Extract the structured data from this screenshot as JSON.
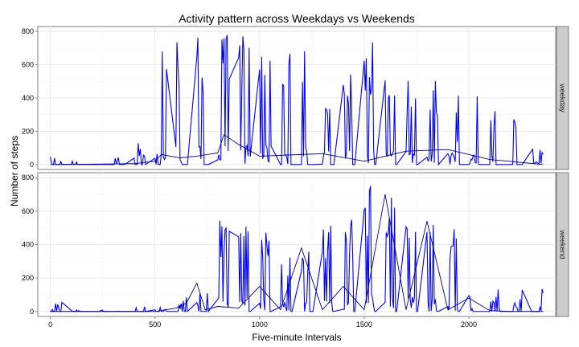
{
  "chart_data": {
    "type": "line",
    "title": "Activity pattern across Weekdays vs Weekends",
    "xlabel": "Five-minute Intervals",
    "ylabel": "Number of steps",
    "xlim": [
      -60,
      2415
    ],
    "ylim": [
      -30,
      830
    ],
    "x_ticks": [
      0,
      500,
      1000,
      1500,
      2000
    ],
    "y_ticks": [
      0,
      200,
      400,
      600,
      800
    ],
    "grid": true,
    "series_color": "#0000ff",
    "mean_color": "#00008b",
    "panels": [
      {
        "name": "weekday",
        "bursts": [
          {
            "x": [
              530,
              555
            ],
            "peak": 790
          },
          {
            "x": [
              600,
              625
            ],
            "peak": 800
          },
          {
            "x": [
              700,
              730
            ],
            "peak": 790
          },
          {
            "x": [
              800,
              860
            ],
            "peak": 790
          },
          {
            "x": [
              900,
              955
            ],
            "peak": 800
          },
          {
            "x": [
              1000,
              1055
            ],
            "peak": 780
          },
          {
            "x": [
              1110,
              1145
            ],
            "peak": 760
          },
          {
            "x": [
              1205,
              1225
            ],
            "peak": 760
          },
          {
            "x": [
              1300,
              1335
            ],
            "peak": 550
          },
          {
            "x": [
              1400,
              1440
            ],
            "peak": 560
          },
          {
            "x": [
              1500,
              1545
            ],
            "peak": 760
          },
          {
            "x": [
              1600,
              1645
            ],
            "peak": 540
          },
          {
            "x": [
              1700,
              1745
            ],
            "peak": 530
          },
          {
            "x": [
              1800,
              1850
            ],
            "peak": 520
          },
          {
            "x": [
              1900,
              1950
            ],
            "peak": 480
          },
          {
            "x": [
              2005,
              2045
            ],
            "peak": 420
          },
          {
            "x": [
              2105,
              2125
            ],
            "peak": 400
          },
          {
            "x": [
              2215,
              2225
            ],
            "peak": 390
          },
          {
            "x": [
              2300,
              2355
            ],
            "peak": 100
          }
        ],
        "low_bursts": [
          {
            "x": [
              0,
              60
            ],
            "peak": 50
          },
          {
            "x": [
              100,
              150
            ],
            "peak": 30
          },
          {
            "x": [
              300,
              340
            ],
            "peak": 45
          },
          {
            "x": [
              400,
              470
            ],
            "peak": 140
          },
          {
            "x": [
              500,
              525
            ],
            "peak": 70
          },
          {
            "x": [
              1900,
              2000
            ],
            "peak": 150
          }
        ],
        "mean": {
          "x": [
            0,
            400,
            500,
            530,
            620,
            700,
            800,
            830,
            900,
            1000,
            1200,
            1300,
            1500,
            1700,
            1900,
            2100,
            2355
          ],
          "y": [
            0,
            5,
            20,
            60,
            40,
            50,
            70,
            180,
            120,
            50,
            60,
            65,
            20,
            80,
            90,
            30,
            0
          ]
        }
      },
      {
        "name": "weekend",
        "bursts": [
          {
            "x": [
              800,
              875
            ],
            "peak": 545
          },
          {
            "x": [
              900,
              945
            ],
            "peak": 540
          },
          {
            "x": [
              1000,
              1045
            ],
            "peak": 570
          },
          {
            "x": [
              1100,
              1145
            ],
            "peak": 380
          },
          {
            "x": [
              1200,
              1235
            ],
            "peak": 360
          },
          {
            "x": [
              1300,
              1345
            ],
            "peak": 530
          },
          {
            "x": [
              1400,
              1445
            ],
            "peak": 550
          },
          {
            "x": [
              1500,
              1545
            ],
            "peak": 780
          },
          {
            "x": [
              1600,
              1645
            ],
            "peak": 780
          },
          {
            "x": [
              1700,
              1745
            ],
            "peak": 620
          },
          {
            "x": [
              1800,
              1845
            ],
            "peak": 530
          },
          {
            "x": [
              1900,
              1945
            ],
            "peak": 540
          },
          {
            "x": [
              2000,
              2015
            ],
            "peak": 130
          },
          {
            "x": [
              2340,
              2355
            ],
            "peak": 180
          }
        ],
        "low_bursts": [
          {
            "x": [
              0,
              70
            ],
            "peak": 55
          },
          {
            "x": [
              100,
              150
            ],
            "peak": 10
          },
          {
            "x": [
              200,
              250
            ],
            "peak": 8
          },
          {
            "x": [
              300,
              350
            ],
            "peak": 8
          },
          {
            "x": [
              400,
              455
            ],
            "peak": 40
          },
          {
            "x": [
              500,
              555
            ],
            "peak": 40
          },
          {
            "x": [
              600,
              650
            ],
            "peak": 100
          },
          {
            "x": [
              700,
              750
            ],
            "peak": 175
          },
          {
            "x": [
              2100,
              2300
            ],
            "peak": 140
          }
        ],
        "mean": {
          "x": [
            0,
            500,
            600,
            650,
            700,
            740,
            800,
            900,
            1000,
            1100,
            1200,
            1300,
            1400,
            1500,
            1600,
            1700,
            1800,
            1900,
            2000,
            2100,
            2200,
            2355
          ],
          "y": [
            0,
            0,
            20,
            50,
            170,
            10,
            30,
            20,
            150,
            10,
            380,
            10,
            150,
            10,
            700,
            10,
            540,
            10,
            80,
            5,
            0,
            0
          ]
        }
      }
    ]
  }
}
